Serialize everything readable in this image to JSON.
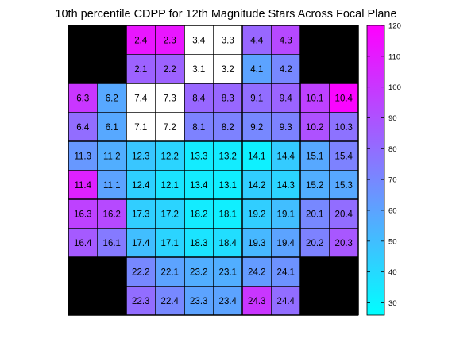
{
  "chart_data": {
    "type": "heatmap",
    "title": "10th percentile CDPP for 12th Magnitude Stars Across Focal Plane",
    "grid": {
      "rows": 10,
      "cols": 10
    },
    "empty_cell_color": "#000000",
    "colormap": {
      "low": "#00ffff",
      "high": "#ff00ff",
      "name": "cool"
    },
    "colorbar": {
      "range": [
        26,
        120
      ],
      "ticks": [
        30,
        40,
        50,
        60,
        70,
        80,
        90,
        100,
        110,
        120
      ]
    },
    "cells": [
      [
        null,
        null,
        {
          "label": "2.4",
          "value": 112
        },
        {
          "label": "2.3",
          "value": 112
        },
        {
          "label": "3.4",
          "value": null
        },
        {
          "label": "3.3",
          "value": null
        },
        {
          "label": "4.4",
          "value": 82
        },
        {
          "label": "4.3",
          "value": 93
        },
        null,
        null
      ],
      [
        null,
        null,
        {
          "label": "2.1",
          "value": 84
        },
        {
          "label": "2.2",
          "value": 84
        },
        {
          "label": "3.1",
          "value": null
        },
        {
          "label": "3.2",
          "value": null
        },
        {
          "label": "4.1",
          "value": 60
        },
        {
          "label": "4.2",
          "value": 70
        },
        null,
        null
      ],
      [
        {
          "label": "6.3",
          "value": 100
        },
        {
          "label": "6.2",
          "value": 58
        },
        {
          "label": "7.4",
          "value": null
        },
        {
          "label": "7.3",
          "value": null
        },
        {
          "label": "8.4",
          "value": 82
        },
        {
          "label": "8.3",
          "value": 82
        },
        {
          "label": "9.1",
          "value": 80
        },
        {
          "label": "9.4",
          "value": 83
        },
        {
          "label": "10.1",
          "value": 96
        },
        {
          "label": "10.4",
          "value": 118
        }
      ],
      [
        {
          "label": "6.4",
          "value": 80
        },
        {
          "label": "6.1",
          "value": 58
        },
        {
          "label": "7.1",
          "value": null
        },
        {
          "label": "7.2",
          "value": null
        },
        {
          "label": "8.1",
          "value": 72
        },
        {
          "label": "8.2",
          "value": 72
        },
        {
          "label": "9.2",
          "value": 70
        },
        {
          "label": "9.3",
          "value": 72
        },
        {
          "label": "10.2",
          "value": 90
        },
        {
          "label": "10.3",
          "value": 78
        }
      ],
      [
        {
          "label": "11.3",
          "value": 64
        },
        {
          "label": "11.2",
          "value": 56
        },
        {
          "label": "12.3",
          "value": 47
        },
        {
          "label": "12.2",
          "value": 42
        },
        {
          "label": "13.3",
          "value": 33
        },
        {
          "label": "13.2",
          "value": 33
        },
        {
          "label": "14.1",
          "value": 31
        },
        {
          "label": "14.4",
          "value": 45
        },
        {
          "label": "15.1",
          "value": 58
        },
        {
          "label": "15.4",
          "value": 72
        }
      ],
      [
        {
          "label": "11.4",
          "value": 108
        },
        {
          "label": "11.1",
          "value": 60
        },
        {
          "label": "12.4",
          "value": 43
        },
        {
          "label": "12.1",
          "value": 36
        },
        {
          "label": "13.4",
          "value": 33
        },
        {
          "label": "13.1",
          "value": 32
        },
        {
          "label": "14.2",
          "value": 44
        },
        {
          "label": "14.3",
          "value": 42
        },
        {
          "label": "15.2",
          "value": 56
        },
        {
          "label": "15.3",
          "value": 58
        }
      ],
      [
        {
          "label": "16.3",
          "value": 96
        },
        {
          "label": "16.2",
          "value": 93
        },
        {
          "label": "17.3",
          "value": 44
        },
        {
          "label": "17.2",
          "value": 42
        },
        {
          "label": "18.2",
          "value": 33
        },
        {
          "label": "18.1",
          "value": 32
        },
        {
          "label": "19.2",
          "value": 44
        },
        {
          "label": "19.1",
          "value": 50
        },
        {
          "label": "20.1",
          "value": 70
        },
        {
          "label": "20.4",
          "value": 80
        }
      ],
      [
        {
          "label": "16.4",
          "value": 87
        },
        {
          "label": "16.1",
          "value": 75
        },
        {
          "label": "17.4",
          "value": 50
        },
        {
          "label": "17.1",
          "value": 42
        },
        {
          "label": "18.3",
          "value": 36
        },
        {
          "label": "18.4",
          "value": 38
        },
        {
          "label": "19.3",
          "value": 52
        },
        {
          "label": "19.4",
          "value": 60
        },
        {
          "label": "20.2",
          "value": 72
        },
        {
          "label": "20.3",
          "value": 88
        }
      ],
      [
        null,
        null,
        {
          "label": "22.2",
          "value": 70
        },
        {
          "label": "22.1",
          "value": 60
        },
        {
          "label": "23.2",
          "value": 56
        },
        {
          "label": "23.1",
          "value": 56
        },
        {
          "label": "24.2",
          "value": 63
        },
        {
          "label": "24.1",
          "value": 66
        },
        null,
        null
      ],
      [
        null,
        null,
        {
          "label": "22.3",
          "value": 80
        },
        {
          "label": "22.4",
          "value": 70
        },
        {
          "label": "23.3",
          "value": 60
        },
        {
          "label": "23.4",
          "value": 60
        },
        {
          "label": "24.3",
          "value": 100
        },
        {
          "label": "24.4",
          "value": 80
        },
        null,
        null
      ]
    ]
  }
}
